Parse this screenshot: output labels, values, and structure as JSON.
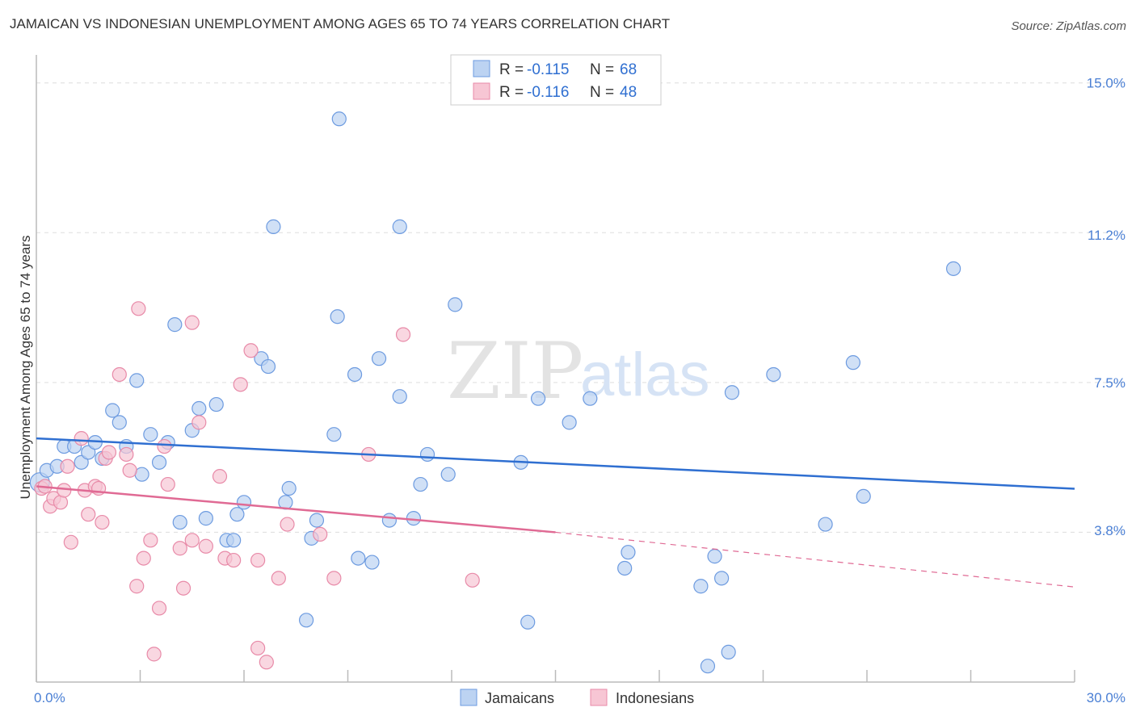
{
  "title": "JAMAICAN VS INDONESIAN UNEMPLOYMENT AMONG AGES 65 TO 74 YEARS CORRELATION CHART",
  "source": "Source: ZipAtlas.com",
  "watermark": {
    "zip": "ZIP",
    "atlas": "atlas"
  },
  "colors": {
    "jamaican_fill": "#bcd3f2",
    "jamaican_stroke": "#6d9be0",
    "jamaican_line": "#2f6fd1",
    "indonesian_fill": "#f7c6d4",
    "indonesian_stroke": "#e88aa8",
    "indonesian_line": "#e06a94",
    "grid": "#dddddd",
    "tick_label": "#4a7fd4"
  },
  "legend_stats": [
    {
      "r_label": "R = ",
      "r_value": "-0.115",
      "n_label": "N = ",
      "n_value": "68",
      "series": "Jamaicans"
    },
    {
      "r_label": "R = ",
      "r_value": "-0.116",
      "n_label": "N = ",
      "n_value": "48",
      "series": "Indonesians"
    }
  ],
  "chart_data": {
    "type": "scatter",
    "title": "JAMAICAN VS INDONESIAN UNEMPLOYMENT AMONG AGES 65 TO 74 YEARS CORRELATION CHART",
    "xlabel": "",
    "ylabel": "Unemployment Among Ages 65 to 74 years",
    "xlim": [
      0,
      30
    ],
    "ylim": [
      0,
      15.5
    ],
    "x_tick_labels": [
      {
        "value": 0,
        "label": "0.0%"
      },
      {
        "value": 30,
        "label": "30.0%"
      }
    ],
    "y_tick_labels": [
      {
        "value": 3.8,
        "label": "3.8%"
      },
      {
        "value": 7.5,
        "label": "7.5%"
      },
      {
        "value": 11.2,
        "label": "11.2%"
      },
      {
        "value": 15.0,
        "label": "15.0%"
      }
    ],
    "y_gridlines": [
      3.75,
      7.5,
      11.25,
      15.0
    ],
    "legend": [
      "Jamaicans",
      "Indonesians"
    ],
    "series": [
      {
        "name": "Jamaicans",
        "r": -0.115,
        "n": 68,
        "trend": {
          "x0": 0,
          "y0": 6.1,
          "x1": 30,
          "y1": 4.84
        },
        "points": [
          [
            0.1,
            5.0,
            1.4
          ],
          [
            0.3,
            5.3,
            1
          ],
          [
            0.6,
            5.4,
            1
          ],
          [
            0.8,
            5.9,
            1
          ],
          [
            1.1,
            5.9,
            1
          ],
          [
            1.3,
            5.5,
            1
          ],
          [
            1.5,
            5.75,
            1
          ],
          [
            1.7,
            6.0,
            1
          ],
          [
            1.9,
            5.6,
            1
          ],
          [
            2.2,
            6.8,
            1
          ],
          [
            2.4,
            6.5,
            1
          ],
          [
            2.6,
            5.9,
            1
          ],
          [
            2.9,
            7.55,
            1
          ],
          [
            3.05,
            5.2,
            1
          ],
          [
            3.3,
            6.2,
            1
          ],
          [
            3.55,
            5.5,
            1
          ],
          [
            3.8,
            6.0,
            1
          ],
          [
            4.0,
            8.95,
            1
          ],
          [
            4.15,
            4.0,
            1
          ],
          [
            4.5,
            6.3,
            1
          ],
          [
            4.7,
            6.85,
            1
          ],
          [
            4.9,
            4.1,
            1
          ],
          [
            5.2,
            6.95,
            1
          ],
          [
            5.5,
            3.55,
            1
          ],
          [
            5.7,
            3.55,
            1
          ],
          [
            5.8,
            4.2,
            1
          ],
          [
            6.0,
            4.5,
            1
          ],
          [
            6.5,
            8.1,
            1
          ],
          [
            6.7,
            7.9,
            1
          ],
          [
            6.85,
            11.4,
            1
          ],
          [
            7.2,
            4.5,
            1
          ],
          [
            7.3,
            4.85,
            1
          ],
          [
            7.8,
            1.55,
            1
          ],
          [
            7.95,
            3.6,
            1
          ],
          [
            8.1,
            4.05,
            1
          ],
          [
            8.6,
            6.2,
            1
          ],
          [
            8.7,
            9.15,
            1
          ],
          [
            8.75,
            14.1,
            1
          ],
          [
            9.2,
            7.7,
            1
          ],
          [
            9.3,
            3.1,
            1
          ],
          [
            9.7,
            3.0,
            1
          ],
          [
            9.9,
            8.1,
            1
          ],
          [
            10.2,
            4.05,
            1
          ],
          [
            10.5,
            7.15,
            1
          ],
          [
            10.5,
            11.4,
            1
          ],
          [
            10.9,
            4.1,
            1
          ],
          [
            11.1,
            4.95,
            1
          ],
          [
            11.3,
            5.7,
            1
          ],
          [
            11.9,
            5.2,
            1
          ],
          [
            12.1,
            9.45,
            1
          ],
          [
            14.0,
            5.5,
            1
          ],
          [
            14.2,
            1.5,
            1
          ],
          [
            14.5,
            7.1,
            1
          ],
          [
            15.4,
            6.5,
            1
          ],
          [
            16.0,
            7.1,
            1
          ],
          [
            17.0,
            2.85,
            1
          ],
          [
            17.1,
            3.25,
            1
          ],
          [
            19.2,
            2.4,
            1
          ],
          [
            19.4,
            0.4,
            1
          ],
          [
            19.6,
            3.15,
            1
          ],
          [
            19.8,
            2.6,
            1
          ],
          [
            20.0,
            0.75,
            1
          ],
          [
            20.1,
            7.25,
            1
          ],
          [
            21.3,
            7.7,
            1
          ],
          [
            22.8,
            3.95,
            1
          ],
          [
            23.6,
            8.0,
            1
          ],
          [
            23.9,
            4.65,
            1
          ],
          [
            26.5,
            10.35,
            1
          ]
        ]
      },
      {
        "name": "Indonesians",
        "r": -0.116,
        "n": 48,
        "trend": {
          "x0": 0,
          "y0": 4.9,
          "x1": 15,
          "y1": 3.75,
          "dash_x1": 30,
          "dash_y1": 2.38
        },
        "points": [
          [
            0.15,
            4.85,
            1
          ],
          [
            0.25,
            4.9,
            1
          ],
          [
            0.4,
            4.4,
            1
          ],
          [
            0.5,
            4.6,
            1
          ],
          [
            0.7,
            4.5,
            1
          ],
          [
            0.8,
            4.8,
            1
          ],
          [
            0.9,
            5.4,
            1
          ],
          [
            1.0,
            3.5,
            1
          ],
          [
            1.3,
            6.1,
            1
          ],
          [
            1.4,
            4.8,
            1
          ],
          [
            1.5,
            4.2,
            1
          ],
          [
            1.7,
            4.9,
            1
          ],
          [
            1.8,
            4.85,
            1
          ],
          [
            1.9,
            4.0,
            1
          ],
          [
            2.0,
            5.6,
            1
          ],
          [
            2.1,
            5.75,
            1
          ],
          [
            2.4,
            7.7,
            1
          ],
          [
            2.6,
            5.7,
            1
          ],
          [
            2.7,
            5.3,
            1
          ],
          [
            2.9,
            2.4,
            1
          ],
          [
            2.95,
            9.35,
            1
          ],
          [
            3.1,
            3.1,
            1
          ],
          [
            3.3,
            3.55,
            1
          ],
          [
            3.4,
            0.7,
            1
          ],
          [
            3.55,
            1.85,
            1
          ],
          [
            3.7,
            5.9,
            1
          ],
          [
            3.8,
            4.95,
            1
          ],
          [
            4.15,
            3.35,
            1
          ],
          [
            4.25,
            2.35,
            1
          ],
          [
            4.5,
            3.55,
            1
          ],
          [
            4.5,
            9.0,
            1
          ],
          [
            4.7,
            6.5,
            1
          ],
          [
            4.9,
            3.4,
            1
          ],
          [
            5.3,
            5.15,
            1
          ],
          [
            5.45,
            3.1,
            1
          ],
          [
            5.7,
            3.05,
            1
          ],
          [
            5.9,
            7.45,
            1
          ],
          [
            6.2,
            8.3,
            1
          ],
          [
            6.4,
            0.85,
            1
          ],
          [
            6.4,
            3.05,
            1
          ],
          [
            6.65,
            0.5,
            1
          ],
          [
            7.0,
            2.6,
            1
          ],
          [
            7.25,
            3.95,
            1
          ],
          [
            8.2,
            3.7,
            1
          ],
          [
            8.6,
            2.6,
            1
          ],
          [
            9.6,
            5.7,
            1
          ],
          [
            10.6,
            8.7,
            1
          ],
          [
            12.6,
            2.55,
            1
          ]
        ]
      }
    ]
  }
}
